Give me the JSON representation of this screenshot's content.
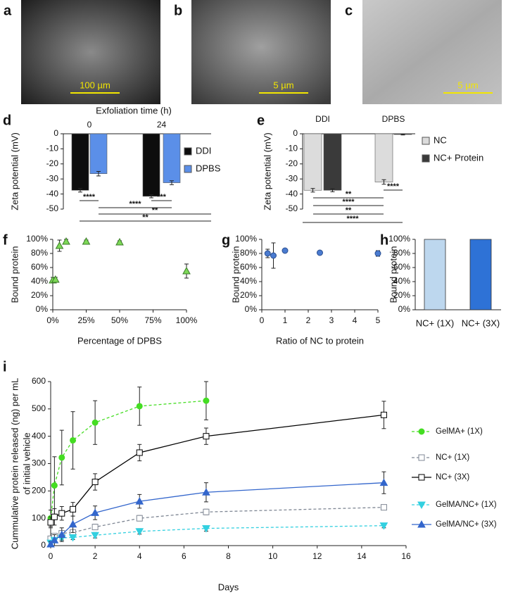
{
  "images": [
    {
      "panel": "a",
      "scale_bar": "100 µm"
    },
    {
      "panel": "b",
      "scale_bar": "5 µm"
    },
    {
      "panel": "c",
      "scale_bar": "5 µm"
    }
  ],
  "chart_data": [
    {
      "type": "bar",
      "panel": "d",
      "xlabel": "Exfoliation time (h)",
      "ylabel": "Zeta potential (mV)",
      "categories": [
        "0",
        "24"
      ],
      "series": [
        {
          "name": "DDI",
          "color": "#0d0d0d",
          "values": [
            -37.5,
            -41.5
          ],
          "errors": [
            1.2,
            1.0
          ]
        },
        {
          "name": "DPBS",
          "color": "#5b8fe8",
          "values": [
            -26.5,
            -32.5
          ],
          "errors": [
            1.5,
            1.3
          ]
        }
      ],
      "ylim": [
        -50,
        0
      ],
      "yticks": [
        0,
        -10,
        -20,
        -30,
        -40,
        -50
      ],
      "annotations": [
        "****",
        "***",
        "****",
        "**",
        "**"
      ]
    },
    {
      "type": "bar",
      "panel": "e",
      "ylabel": "Zeta potential (mV)",
      "categories": [
        "DDI",
        "DPBS"
      ],
      "series": [
        {
          "name": "NC",
          "color": "#dcdcdc",
          "values": [
            -37.5,
            -32
          ],
          "errors": [
            1.2,
            1.5
          ]
        },
        {
          "name": "NC+ Protein",
          "color": "#3a3a3a",
          "values": [
            -37.5,
            -0.5
          ],
          "errors": [
            1.0,
            0.3
          ]
        }
      ],
      "ylim": [
        -50,
        0
      ],
      "yticks": [
        0,
        -10,
        -20,
        -30,
        -40,
        -50
      ],
      "annotations": [
        "**",
        "****",
        "****",
        "**",
        "****"
      ]
    },
    {
      "type": "scatter",
      "panel": "f",
      "xlabel": "Percentage of DPBS",
      "ylabel": "Bound protein",
      "color": "#7ed957",
      "marker": "triangle",
      "x": [
        0,
        2,
        5,
        10,
        25,
        50,
        100
      ],
      "values": [
        42,
        43,
        91,
        97,
        97,
        96,
        55
      ],
      "errors": [
        4,
        3,
        8,
        3,
        2,
        2,
        10
      ],
      "xlim": [
        0,
        100
      ],
      "xticks": [
        {
          "value": 0,
          "label": "0%"
        },
        {
          "value": 25,
          "label": "25%"
        },
        {
          "value": 50,
          "label": "50%"
        },
        {
          "value": 75,
          "label": "75%"
        },
        {
          "value": 100,
          "label": "100%"
        }
      ],
      "ylim": [
        0,
        100
      ],
      "yticks": [
        {
          "value": 0,
          "label": "0%"
        },
        {
          "value": 20,
          "label": "20%"
        },
        {
          "value": 40,
          "label": "40%"
        },
        {
          "value": 60,
          "label": "60%"
        },
        {
          "value": 80,
          "label": "80%"
        },
        {
          "value": 100,
          "label": "100%"
        }
      ]
    },
    {
      "type": "scatter",
      "panel": "g",
      "xlabel": "Ratio of NC to protein",
      "ylabel": "Bound protein",
      "color": "#4a7bd0",
      "marker": "circle",
      "x": [
        0.25,
        0.5,
        1,
        2.5,
        5
      ],
      "values": [
        80,
        77,
        84,
        81,
        80
      ],
      "errors": [
        6,
        18,
        2,
        2,
        4
      ],
      "xlim": [
        0,
        5
      ],
      "xticks": [
        0,
        1,
        2,
        3,
        4,
        5
      ],
      "ylim": [
        0,
        100
      ],
      "yticks": [
        {
          "value": 0,
          "label": "0%"
        },
        {
          "value": 20,
          "label": "20%"
        },
        {
          "value": 40,
          "label": "40%"
        },
        {
          "value": 60,
          "label": "60%"
        },
        {
          "value": 80,
          "label": "80%"
        },
        {
          "value": 100,
          "label": "100%"
        }
      ]
    },
    {
      "type": "bar",
      "panel": "h",
      "ylabel": "Bound protein",
      "categories": [
        "NC+ (1X)",
        "NC+ (3X)"
      ],
      "values": [
        100,
        100
      ],
      "colors": [
        "#bdd7ee",
        "#2e72d6"
      ],
      "ylim": [
        0,
        100
      ],
      "yticks": [
        {
          "value": 0,
          "label": "0%"
        },
        {
          "value": 20,
          "label": "20%"
        },
        {
          "value": 40,
          "label": "40%"
        },
        {
          "value": 60,
          "label": "60%"
        },
        {
          "value": 80,
          "label": "80%"
        },
        {
          "value": 100,
          "label": "100%"
        }
      ]
    },
    {
      "type": "line",
      "panel": "i",
      "xlabel": "Days",
      "ylabel": [
        "Cummulative protein released (ng) per mL",
        "of initial vehicle"
      ],
      "x": [
        0,
        0.17,
        0.5,
        1,
        2,
        4,
        7,
        15
      ],
      "series": [
        {
          "name": "GelMA+ (1X)",
          "color": "#44dd22",
          "dash": true,
          "marker": "circle",
          "open": false,
          "values": [
            100,
            220,
            322,
            385,
            450,
            510,
            530,
            null
          ],
          "errors": [
            30,
            105,
            100,
            105,
            80,
            70,
            70,
            null
          ]
        },
        {
          "name": "NC+ (1X)",
          "color": "#7f8794",
          "dash": true,
          "marker": "square",
          "open": true,
          "values": [
            25,
            35,
            45,
            48,
            68,
            100,
            123,
            140
          ],
          "errors": [
            8,
            10,
            10,
            10,
            10,
            10,
            10,
            8
          ]
        },
        {
          "name": "NC+ (3X)",
          "color": "#000000",
          "dash": false,
          "marker": "square",
          "open": true,
          "values": [
            85,
            105,
            118,
            133,
            233,
            340,
            400,
            478
          ],
          "errors": [
            20,
            30,
            25,
            25,
            30,
            30,
            30,
            50
          ]
        },
        {
          "name": "GelMA/NC+ (1X)",
          "color": "#33d0e0",
          "dash": true,
          "marker": "triangle-down",
          "open": false,
          "values": [
            10,
            20,
            28,
            30,
            38,
            52,
            63,
            73
          ],
          "errors": [
            5,
            8,
            8,
            8,
            10,
            10,
            10,
            8
          ]
        },
        {
          "name": "GelMA/NC+ (3X)",
          "color": "#3366cc",
          "dash": false,
          "marker": "triangle",
          "open": false,
          "values": [
            5,
            20,
            40,
            78,
            120,
            162,
            195,
            230
          ],
          "errors": [
            10,
            20,
            25,
            30,
            25,
            25,
            35,
            40
          ]
        }
      ],
      "xlim": [
        0,
        16
      ],
      "xticks": [
        0,
        2,
        4,
        6,
        8,
        10,
        12,
        14,
        16
      ],
      "ylim": [
        0,
        600
      ],
      "yticks": [
        0,
        100,
        200,
        300,
        400,
        500,
        600
      ]
    }
  ]
}
